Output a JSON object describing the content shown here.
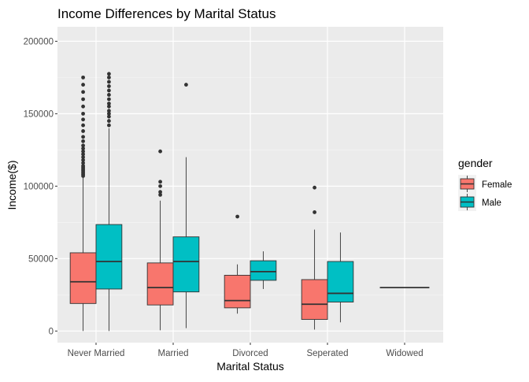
{
  "chart_data": {
    "type": "boxplot",
    "title": "Income Differences by Marital Status",
    "xlabel": "Marital Status",
    "ylabel": "Income($)",
    "categories": [
      "Never Married",
      "Married",
      "Divorced",
      "Seperated",
      "Widowed"
    ],
    "ylim": [
      -8000,
      210000
    ],
    "yticks": [
      0,
      50000,
      100000,
      150000,
      200000
    ],
    "ytick_labels": [
      "0",
      "50000",
      "100000",
      "150000",
      "200000"
    ],
    "grid": true,
    "legend": {
      "title": "gender",
      "position": "right",
      "entries": [
        {
          "label": "Female",
          "color": "#F8766D"
        },
        {
          "label": "Male",
          "color": "#00BFC4"
        }
      ]
    },
    "series": [
      {
        "group": "Female",
        "color": "#F8766D",
        "boxes": [
          {
            "category": "Never Married",
            "min": 0,
            "q1": 19000,
            "median": 34000,
            "q3": 54000,
            "max": 106000,
            "outliers": [
              107000,
              108000,
              109000,
              110000,
              111000,
              112000,
              113000,
              114000,
              116000,
              118000,
              120000,
              122000,
              124000,
              126000,
              128000,
              131000,
              134000,
              138000,
              142000,
              146000,
              150000,
              155000,
              160000,
              165000,
              170000,
              175000
            ]
          },
          {
            "category": "Married",
            "min": 500,
            "q1": 18000,
            "median": 30000,
            "q3": 47000,
            "max": 90000,
            "outliers": [
              94000,
              96000,
              100000,
              103000,
              124000
            ]
          },
          {
            "category": "Divorced",
            "min": 12000,
            "q1": 16000,
            "median": 21000,
            "q3": 38500,
            "max": 46000,
            "outliers": [
              79000
            ]
          },
          {
            "category": "Seperated",
            "min": 1000,
            "q1": 8000,
            "median": 18500,
            "q3": 35500,
            "max": 70000,
            "outliers": [
              82000,
              99000
            ]
          },
          {
            "category": "Widowed",
            "min": 30000,
            "q1": 30000,
            "median": 30000,
            "q3": 30000,
            "max": 30000,
            "outliers": []
          }
        ]
      },
      {
        "group": "Male",
        "color": "#00BFC4",
        "boxes": [
          {
            "category": "Never Married",
            "min": 0,
            "q1": 29000,
            "median": 48000,
            "q3": 73500,
            "max": 140000,
            "outliers": [
              142000,
              145000,
              148000,
              150000,
              152000,
              155000,
              157000,
              160000,
              163000,
              166000,
              169000,
              172000,
              175000,
              177500
            ]
          },
          {
            "category": "Married",
            "min": 2000,
            "q1": 27000,
            "median": 48000,
            "q3": 65000,
            "max": 120000,
            "outliers": [
              170000
            ]
          },
          {
            "category": "Divorced",
            "min": 29000,
            "q1": 35000,
            "median": 41000,
            "q3": 48500,
            "max": 55000,
            "outliers": []
          },
          {
            "category": "Seperated",
            "min": 6000,
            "q1": 20000,
            "median": 26000,
            "q3": 48000,
            "max": 68000,
            "outliers": []
          }
        ]
      }
    ]
  }
}
